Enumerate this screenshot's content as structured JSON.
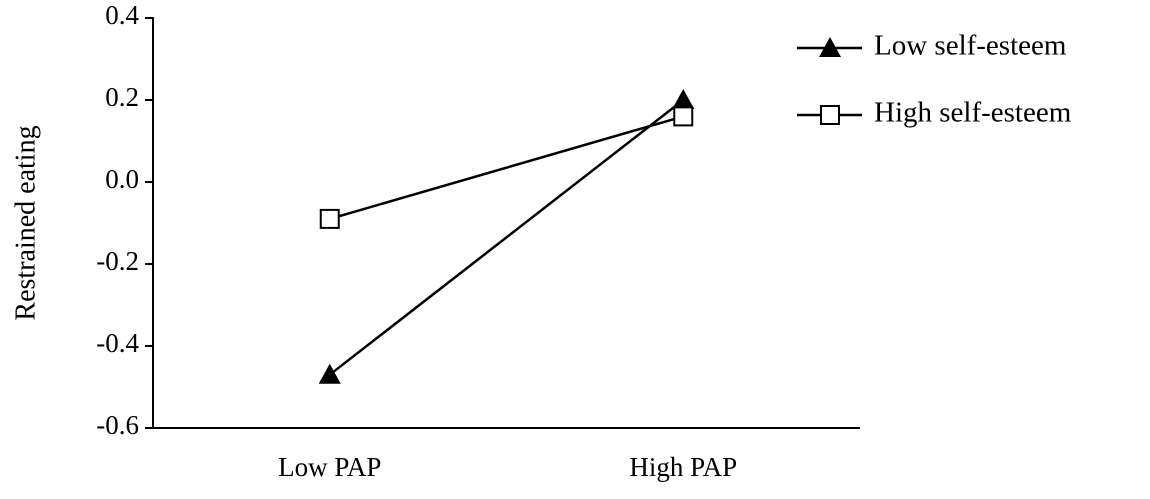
{
  "chart_data": {
    "type": "line",
    "y_label": "Restrained eating",
    "categories": [
      "Low PAP",
      "High PAP"
    ],
    "series": [
      {
        "name": "Low self-esteem",
        "color": "#000000",
        "marker": "triangle",
        "values": [
          -0.47,
          0.2
        ]
      },
      {
        "name": "High self-esteem",
        "color": "#000000",
        "marker": "square",
        "values": [
          -0.09,
          0.16
        ]
      }
    ],
    "ylim": [
      -0.6,
      0.4
    ],
    "yticks": [
      -0.6,
      -0.4,
      -0.2,
      {
        "value": 0,
        "label": "0.0"
      },
      0.2,
      0.4
    ],
    "grid": false,
    "legend": "top-right"
  }
}
